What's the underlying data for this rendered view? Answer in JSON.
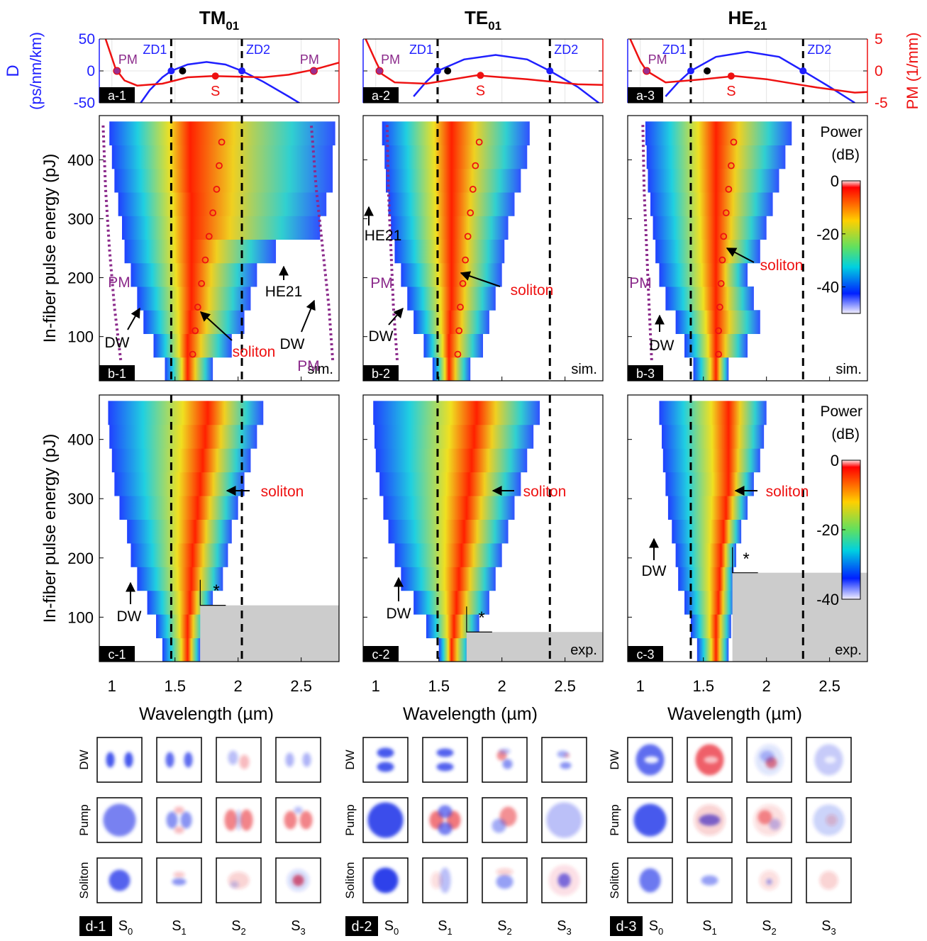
{
  "chart_data": [
    {
      "type": "line",
      "title": "TM",
      "title_sub": "01",
      "label": "a-1",
      "ylabel": "D",
      "ylabel_unit": "(ps/nm/km)",
      "xlim": [
        0.9,
        2.8
      ],
      "xticks": [
        1,
        1.5,
        2,
        2.5
      ],
      "ylim": [
        -50,
        50
      ],
      "yticks": [
        -50,
        0,
        50
      ],
      "ytick_labels": true,
      "y2lim": [
        -5,
        5
      ],
      "y2ticks": [
        -5,
        0,
        5
      ],
      "y2tick_labels": false,
      "grid": true,
      "series": [
        {
          "color": "#1f1fff",
          "x": [
            1.2,
            1.3,
            1.4,
            1.47,
            1.6,
            1.75,
            1.9,
            2.03,
            2.2,
            2.4,
            2.55
          ],
          "values": [
            -58,
            -30,
            -10,
            0,
            10,
            14,
            10,
            0,
            -17,
            -40,
            -58
          ]
        },
        {
          "color": "#ee1111",
          "axis": "y2",
          "x": [
            0.95,
            1.03,
            1.1,
            1.2,
            1.4,
            1.6,
            1.8,
            2.0,
            2.2,
            2.4,
            2.6,
            2.8
          ],
          "values": [
            5,
            0.3,
            -1.5,
            -2.3,
            -2.0,
            -1.0,
            -0.8,
            -0.9,
            -1.0,
            -0.6,
            0.2,
            1.3
          ]
        }
      ],
      "zd_x": [
        1.47,
        2.03
      ],
      "zd_labels": [
        "ZD1",
        "ZD2"
      ],
      "pm_x": [
        1.04,
        2.6
      ],
      "pm_labels": [
        "PM",
        "PM"
      ],
      "pump_x": 1.56,
      "s_x": 1.82,
      "s_y": -0.8,
      "s_label": "S"
    },
    {
      "type": "line",
      "title": "TE",
      "title_sub": "01",
      "label": "a-2",
      "xlim": [
        0.9,
        2.8
      ],
      "xticks": [
        1,
        1.5,
        2,
        2.5
      ],
      "ylim": [
        -50,
        50
      ],
      "yticks": [
        -50,
        0,
        50
      ],
      "ytick_labels": false,
      "y2lim": [
        -5,
        5
      ],
      "y2ticks": [
        -5,
        0,
        5
      ],
      "y2tick_labels": false,
      "grid": true,
      "series": [
        {
          "color": "#1f1fff",
          "x": [
            1.3,
            1.4,
            1.49,
            1.7,
            1.95,
            2.2,
            2.38,
            2.6,
            2.8
          ],
          "values": [
            -40,
            -17,
            0,
            18,
            25,
            18,
            0,
            -25,
            -55
          ]
        },
        {
          "color": "#ee1111",
          "axis": "y2",
          "x": [
            0.92,
            1.0,
            1.05,
            1.15,
            1.4,
            1.8,
            2.2,
            2.6,
            2.8
          ],
          "values": [
            5,
            1.5,
            -0.5,
            -1.8,
            -2.0,
            -0.7,
            -1.3,
            -2.1,
            -2.2
          ]
        }
      ],
      "zd_x": [
        1.49,
        2.38
      ],
      "zd_labels": [
        "ZD1",
        "ZD2"
      ],
      "pm_x": [
        1.03
      ],
      "pm_labels": [
        "PM"
      ],
      "pump_x": 1.57,
      "s_x": 1.83,
      "s_y": -0.7,
      "s_label": "S"
    },
    {
      "type": "line",
      "title": "HE",
      "title_sub": "21",
      "label": "a-3",
      "y2label": "PM (1/mm)",
      "xlim": [
        0.9,
        2.8
      ],
      "xticks": [
        1,
        1.5,
        2,
        2.5
      ],
      "ylim": [
        -50,
        50
      ],
      "yticks": [
        -50,
        0,
        50
      ],
      "ytick_labels": false,
      "y2lim": [
        -5,
        5
      ],
      "y2ticks": [
        -5,
        0,
        5
      ],
      "y2tick_labels": true,
      "grid": true,
      "series": [
        {
          "color": "#1f1fff",
          "x": [
            1.2,
            1.3,
            1.4,
            1.6,
            1.85,
            2.1,
            2.29,
            2.5,
            2.7
          ],
          "values": [
            -40,
            -18,
            0,
            22,
            30,
            22,
            0,
            -25,
            -50
          ]
        },
        {
          "color": "#ee1111",
          "axis": "y2",
          "x": [
            0.92,
            1.0,
            1.05,
            1.2,
            1.5,
            1.75,
            2.0,
            2.4,
            2.7,
            2.8
          ],
          "values": [
            5,
            1.5,
            0,
            -1.8,
            -1.3,
            -0.8,
            -1.3,
            -2.6,
            -3.4,
            -3.3
          ]
        }
      ],
      "zd_x": [
        1.4,
        2.29
      ],
      "zd_labels": [
        "ZD1",
        "ZD2"
      ],
      "pm_x": [
        1.05
      ],
      "pm_labels": [
        "PM"
      ],
      "pump_x": 1.53,
      "s_x": 1.72,
      "s_y": -0.8,
      "s_label": "S"
    },
    {
      "type": "heatmap",
      "label": "b-1",
      "note": "sim.",
      "ylabel": "In-fiber pulse energy (pJ)",
      "xlim": [
        0.9,
        2.8
      ],
      "xticks": [
        1,
        1.5,
        2,
        2.5
      ],
      "xtick_labels": false,
      "ylim": [
        25,
        475
      ],
      "yticks": [
        100,
        200,
        300,
        400
      ],
      "ytick_labels": true,
      "zd_x": [
        1.47,
        2.03
      ],
      "rows": {
        "energy": [
          45,
          85,
          125,
          165,
          205,
          245,
          285,
          325,
          365,
          405,
          445
        ],
        "left": [
          1.42,
          1.33,
          1.25,
          1.2,
          1.15,
          1.1,
          1.08,
          1.05,
          1.02,
          1.0,
          0.98
        ],
        "right": [
          1.8,
          1.95,
          2.05,
          2.1,
          2.15,
          2.3,
          2.65,
          2.7,
          2.75,
          2.75,
          2.77
        ],
        "peak": [
          1.6,
          1.6,
          1.62,
          1.63,
          1.63,
          1.63,
          1.63,
          1.63,
          1.62,
          1.62,
          1.62
        ]
      },
      "soliton_x": [
        1.64,
        1.66,
        1.68,
        1.71,
        1.74,
        1.77,
        1.8,
        1.83,
        1.85,
        1.87
      ],
      "soliton_y": [
        70,
        110,
        150,
        190,
        230,
        270,
        310,
        350,
        390,
        430
      ],
      "pm_lines": [
        {
          "x": [
            1.07,
            1.02,
            0.98,
            0.95,
            0.93
          ],
          "y": [
            60,
            150,
            250,
            350,
            460
          ]
        },
        {
          "x": [
            2.75,
            2.72,
            2.67,
            2.62,
            2.58
          ],
          "y": [
            60,
            150,
            250,
            350,
            460
          ]
        }
      ],
      "annotations": [
        {
          "text": "PM",
          "color": "#8b2a8b"
        },
        {
          "text": "DW",
          "color": "#000000"
        },
        {
          "text": "soliton",
          "color": "#ee1111"
        },
        {
          "text": "HE21",
          "color": "#000000"
        },
        {
          "text": "DW",
          "color": "#000000"
        },
        {
          "text": "PM",
          "color": "#8b2a8b"
        }
      ]
    },
    {
      "type": "heatmap",
      "label": "b-2",
      "note": "sim.",
      "xlim": [
        0.9,
        2.8
      ],
      "xticks": [
        1,
        1.5,
        2,
        2.5
      ],
      "xtick_labels": false,
      "ylim": [
        25,
        475
      ],
      "yticks": [
        100,
        200,
        300,
        400
      ],
      "ytick_labels": false,
      "zd_x": [
        1.49,
        2.38
      ],
      "rows": {
        "energy": [
          45,
          85,
          125,
          165,
          205,
          245,
          285,
          325,
          365,
          405,
          445
        ],
        "left": [
          1.45,
          1.38,
          1.3,
          1.25,
          1.2,
          1.15,
          1.12,
          1.1,
          1.08,
          1.07,
          1.05
        ],
        "right": [
          1.75,
          1.85,
          1.9,
          1.95,
          2.0,
          2.02,
          2.05,
          2.1,
          2.15,
          2.2,
          2.22
        ],
        "peak": [
          1.58,
          1.58,
          1.59,
          1.6,
          1.6,
          1.6,
          1.6,
          1.6,
          1.6,
          1.6,
          1.6
        ]
      },
      "soliton_x": [
        1.65,
        1.66,
        1.67,
        1.69,
        1.71,
        1.73,
        1.75,
        1.77,
        1.79,
        1.82
      ],
      "soliton_y": [
        70,
        110,
        150,
        190,
        230,
        270,
        310,
        350,
        390,
        430
      ],
      "pm_lines": [
        {
          "x": [
            1.17,
            1.14,
            1.12,
            1.1,
            1.09
          ],
          "y": [
            60,
            150,
            250,
            350,
            460
          ]
        }
      ],
      "annotations": [
        {
          "text": "HE21",
          "color": "#000000"
        },
        {
          "text": "PM",
          "color": "#8b2a8b"
        },
        {
          "text": "DW",
          "color": "#000000"
        },
        {
          "text": "soliton",
          "color": "#ee1111"
        }
      ]
    },
    {
      "type": "heatmap",
      "label": "b-3",
      "note": "sim.",
      "xlim": [
        0.9,
        2.8
      ],
      "xticks": [
        1,
        1.5,
        2,
        2.5
      ],
      "xtick_labels": false,
      "ylim": [
        25,
        475
      ],
      "yticks": [
        100,
        200,
        300,
        400
      ],
      "ytick_labels": false,
      "zd_x": [
        1.4,
        2.29
      ],
      "rows": {
        "energy": [
          45,
          85,
          125,
          165,
          205,
          245,
          285,
          325,
          365,
          405,
          445
        ],
        "left": [
          1.42,
          1.35,
          1.28,
          1.2,
          1.15,
          1.12,
          1.1,
          1.08,
          1.06,
          1.05,
          1.04
        ],
        "right": [
          1.7,
          1.85,
          1.95,
          1.9,
          1.85,
          1.95,
          2.0,
          2.05,
          2.1,
          2.15,
          2.2
        ],
        "peak": [
          1.6,
          1.6,
          1.6,
          1.6,
          1.6,
          1.6,
          1.6,
          1.6,
          1.6,
          1.6,
          1.6
        ]
      },
      "soliton_x": [
        1.62,
        1.62,
        1.63,
        1.64,
        1.65,
        1.66,
        1.68,
        1.7,
        1.72,
        1.74
      ],
      "soliton_y": [
        70,
        110,
        150,
        190,
        230,
        270,
        310,
        350,
        390,
        430
      ],
      "pm_lines": [
        {
          "x": [
            1.09,
            1.07,
            1.05,
            1.03,
            1.02
          ],
          "y": [
            60,
            150,
            250,
            350,
            460
          ]
        }
      ],
      "annotations": [
        {
          "text": "PM",
          "color": "#8b2a8b"
        },
        {
          "text": "DW",
          "color": "#000000"
        },
        {
          "text": "soliton",
          "color": "#ee1111"
        }
      ],
      "colorbar": {
        "title": "Power",
        "unit": "(dB)",
        "lim": [
          -50,
          0
        ],
        "ticks": [
          0,
          -20,
          -40
        ]
      }
    },
    {
      "type": "heatmap",
      "label": "c-1",
      "ylabel": "In-fiber pulse energy (pJ)",
      "xlabel": "Wavelength (µm)",
      "xlim": [
        0.9,
        2.8
      ],
      "xticks": [
        1,
        1.5,
        2,
        2.5
      ],
      "xtick_labels": true,
      "ylim": [
        25,
        475
      ],
      "yticks": [
        100,
        200,
        300,
        400
      ],
      "ytick_labels": true,
      "zd_x": [
        1.47,
        2.03
      ],
      "rows": {
        "energy": [
          45,
          85,
          125,
          165,
          205,
          245,
          285,
          325,
          365,
          405,
          445
        ],
        "left": [
          1.4,
          1.35,
          1.28,
          1.2,
          1.15,
          1.12,
          1.06,
          1.02,
          1.0,
          0.98,
          0.97
        ],
        "right": [
          1.7,
          1.75,
          1.8,
          1.88,
          1.92,
          1.95,
          2.0,
          2.05,
          2.1,
          2.15,
          2.2
        ],
        "peak": [
          1.6,
          1.6,
          1.62,
          1.63,
          1.64,
          1.66,
          1.68,
          1.7,
          1.72,
          1.74,
          1.76
        ]
      },
      "gray_x": 1.7,
      "gray_y": 120,
      "annotations": [
        {
          "text": "soliton",
          "color": "#ee1111"
        },
        {
          "text": "DW",
          "color": "#000000"
        },
        {
          "text": "*",
          "color": "#000000"
        }
      ]
    },
    {
      "type": "heatmap",
      "label": "c-2",
      "note": "exp.",
      "xlabel": "Wavelength (µm)",
      "xlim": [
        0.9,
        2.8
      ],
      "xticks": [
        1,
        1.5,
        2,
        2.5
      ],
      "xtick_labels": true,
      "ylim": [
        25,
        475
      ],
      "yticks": [
        100,
        200,
        300,
        400
      ],
      "ytick_labels": false,
      "zd_x": [
        1.49,
        2.38
      ],
      "rows": {
        "energy": [
          45,
          85,
          125,
          165,
          205,
          245,
          285,
          325,
          365,
          405,
          445
        ],
        "left": [
          1.5,
          1.4,
          1.3,
          1.2,
          1.15,
          1.1,
          1.06,
          1.03,
          1.0,
          0.99,
          0.98
        ],
        "right": [
          1.75,
          1.82,
          1.9,
          1.95,
          2.0,
          2.05,
          2.1,
          2.15,
          2.2,
          2.25,
          2.3
        ],
        "peak": [
          1.6,
          1.62,
          1.64,
          1.66,
          1.68,
          1.7,
          1.72,
          1.74,
          1.76,
          1.78,
          1.8
        ]
      },
      "gray_x": 1.72,
      "gray_y": 75,
      "annotations": [
        {
          "text": "soliton",
          "color": "#ee1111"
        },
        {
          "text": "DW",
          "color": "#000000"
        },
        {
          "text": "*",
          "color": "#000000"
        }
      ]
    },
    {
      "type": "heatmap",
      "label": "c-3",
      "note": "exp.",
      "xlabel": "Wavelength (µm)",
      "xlim": [
        0.9,
        2.8
      ],
      "xticks": [
        1,
        1.5,
        2,
        2.5
      ],
      "xtick_labels": true,
      "ylim": [
        25,
        475
      ],
      "yticks": [
        100,
        200,
        300,
        400
      ],
      "ytick_labels": false,
      "zd_x": [
        1.4,
        2.29
      ],
      "rows": {
        "energy": [
          45,
          85,
          125,
          165,
          205,
          245,
          285,
          325,
          365,
          405,
          445
        ],
        "left": [
          1.45,
          1.4,
          1.35,
          1.3,
          1.28,
          1.25,
          1.22,
          1.2,
          1.18,
          1.17,
          1.15
        ],
        "right": [
          1.7,
          1.72,
          1.74,
          1.74,
          1.76,
          1.8,
          1.85,
          1.9,
          1.95,
          1.98,
          2.0
        ],
        "peak": [
          1.6,
          1.6,
          1.62,
          1.63,
          1.64,
          1.66,
          1.68,
          1.7,
          1.7,
          1.7,
          1.7
        ]
      },
      "gray_x": 1.73,
      "gray_y": 175,
      "annotations": [
        {
          "text": "soliton",
          "color": "#ee1111"
        },
        {
          "text": "DW",
          "color": "#000000"
        },
        {
          "text": "*",
          "color": "#000000"
        }
      ],
      "colorbar": {
        "title": "Power",
        "unit": "(dB)",
        "lim": [
          -40,
          0
        ],
        "ticks": [
          0,
          -20,
          -40
        ]
      }
    }
  ],
  "stokes": {
    "groups": [
      "d-1",
      "d-2",
      "d-3"
    ],
    "rows": [
      "DW",
      "Pump",
      "Soliton"
    ],
    "params": [
      {
        "main": "S",
        "sub": "0"
      },
      {
        "main": "S",
        "sub": "1"
      },
      {
        "main": "S",
        "sub": "2"
      },
      {
        "main": "S",
        "sub": "3"
      }
    ]
  }
}
